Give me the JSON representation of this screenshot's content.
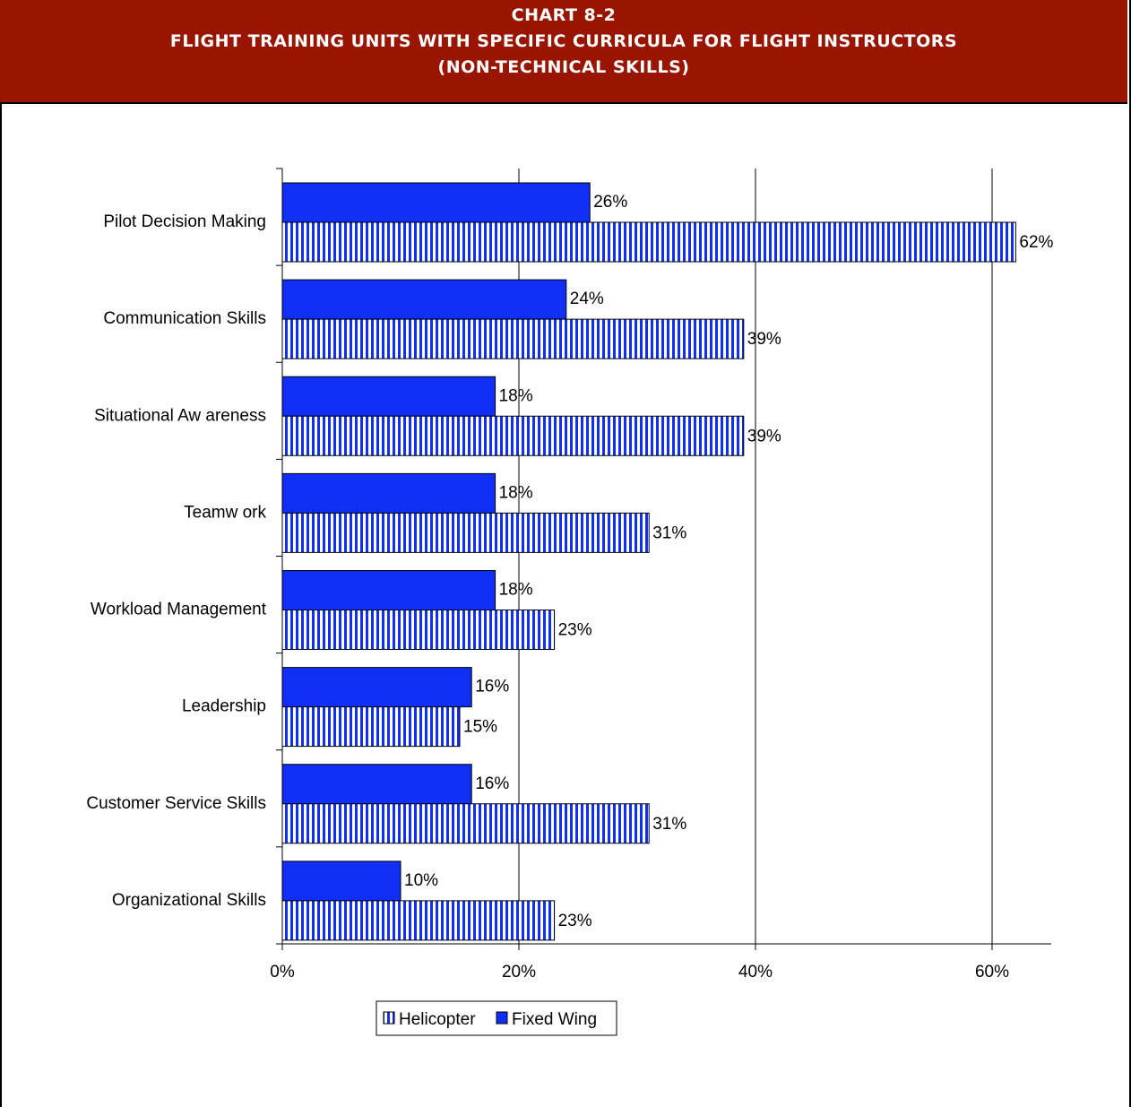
{
  "header": {
    "line1": "CHART 8-2",
    "line2": "FLIGHT TRAINING UNITS WITH SPECIFIC CURRICULA FOR FLIGHT INSTRUCTORS",
    "line3": "(NON-TECHNICAL SKILLS)",
    "background": "#991500"
  },
  "chart_data": {
    "type": "bar",
    "orientation": "horizontal",
    "categories": [
      "Pilot Decision Making",
      "Communication Skills",
      "Situational Aw areness",
      "Teamw ork",
      "Workload Management",
      "Leadership",
      "Customer Service Skills",
      "Organizational Skills"
    ],
    "series": [
      {
        "name": "Fixed Wing",
        "values": [
          26,
          24,
          18,
          18,
          18,
          16,
          16,
          10
        ],
        "labels": [
          "26%",
          "24%",
          "18%",
          "18%",
          "18%",
          "16%",
          "16%",
          "10%"
        ],
        "color": "#0f2ff5",
        "pattern": "solid"
      },
      {
        "name": "Helicopter",
        "values": [
          62,
          39,
          39,
          31,
          23,
          15,
          31,
          23
        ],
        "labels": [
          "62%",
          "39%",
          "39%",
          "31%",
          "23%",
          "15%",
          "31%",
          "23%"
        ],
        "color": "#0f2ff5",
        "pattern": "vertical-stripes"
      }
    ],
    "legend_order": [
      "Helicopter",
      "Fixed Wing"
    ],
    "xlim": [
      0,
      65
    ],
    "xticks": [
      0,
      20,
      40,
      60
    ],
    "xtick_labels": [
      "0%",
      "20%",
      "40%",
      "60%"
    ],
    "grid": "vertical",
    "legend_position": "bottom"
  }
}
